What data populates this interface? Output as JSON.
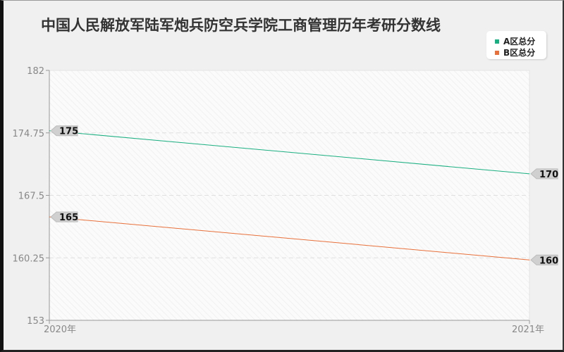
{
  "chart_data": {
    "type": "line",
    "title": "中国人民解放军陆军炮兵防空兵学院工商管理历年考研分数线",
    "categories": [
      "2020年",
      "2021年"
    ],
    "series": [
      {
        "name": "A区总分",
        "values": [
          175,
          170
        ],
        "color": "#1aaf80"
      },
      {
        "name": "B区总分",
        "values": [
          165,
          160
        ],
        "color": "#e8703a"
      }
    ],
    "ylim": [
      153,
      182
    ],
    "yticks": [
      "182",
      "174.75",
      "167.5",
      "160.25",
      "153"
    ],
    "grid": true,
    "legend_position": "top-right"
  }
}
